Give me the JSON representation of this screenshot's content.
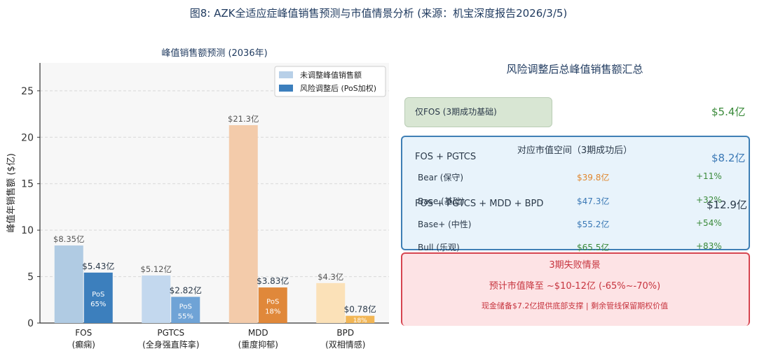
{
  "figure_title": "图8: AZK全适应症峰值销售预测与市值情景分析 (来源：机宝深度报告2026/3/5)",
  "chart_data": {
    "type": "bar",
    "title": "峰值销售额预测 (2036年)",
    "ylabel": "峰值年销售额 ($亿)",
    "xlabel": "",
    "ylim": [
      0,
      28
    ],
    "yticks": [
      0,
      5,
      10,
      15,
      20,
      25
    ],
    "grid": "horizontal-dashed",
    "legend_position": "top-right",
    "categories": [
      {
        "name": "FOS",
        "sub": "(癫痫)"
      },
      {
        "name": "PGTCS",
        "sub": "(全身强直阵挛)"
      },
      {
        "name": "MDD",
        "sub": "(重度抑郁)"
      },
      {
        "name": "BPD",
        "sub": "(双相情感)"
      }
    ],
    "series": [
      {
        "name": "未调整峰值销售额",
        "values": [
          8.35,
          5.12,
          21.3,
          4.3
        ],
        "labels": [
          "$8.35亿",
          "$5.12亿",
          "$21.3亿",
          "$4.3亿"
        ],
        "colors": [
          "#b0cbe3",
          "#c3d8ee",
          "#f3cbaa",
          "#fbe1b8"
        ],
        "legend_color": "#b8d0e8"
      },
      {
        "name": "风险调整后 (PoS加权)",
        "values": [
          5.43,
          2.82,
          3.83,
          0.78
        ],
        "labels": [
          "$5.43亿",
          "$2.82亿",
          "$3.83亿",
          "$0.78亿"
        ],
        "colors": [
          "#3c7fbd",
          "#6fa3d6",
          "#e0883a",
          "#f2b655"
        ],
        "legend_color": "#3c7fbd",
        "pos_labels": [
          "PoS\n65%",
          "PoS\n55%",
          "PoS\n18%",
          "18%"
        ]
      }
    ]
  },
  "summary": {
    "title": "风险调整后总峰值销售额汇总",
    "fos_only": {
      "label": "仅FOS (3期成功基础)",
      "value": "$5.4亿"
    },
    "fos_pgtcs": {
      "label": "FOS + PGTCS",
      "value": "$8.2亿"
    },
    "fos_all": {
      "label": "FOS + PGTCS + MDD + BPD",
      "value": "$12.9亿"
    },
    "market_value": {
      "title": "对应市值空间（3期成功后）",
      "rows": [
        {
          "scenario": "Bear (保守)",
          "value": "$39.8亿",
          "change": "+11%",
          "color": "#e0872f"
        },
        {
          "scenario": "Base (基础)",
          "value": "$47.3亿",
          "change": "+32%",
          "color": "#3a78b5"
        },
        {
          "scenario": "Base+ (中性)",
          "value": "$55.2亿",
          "change": "+54%",
          "color": "#3a78b5"
        },
        {
          "scenario": "Bull (乐观)",
          "value": "$65.5亿",
          "change": "+83%",
          "color": "#3a8a3a"
        }
      ]
    },
    "failure": {
      "title": "3期失败情景",
      "line1": "预计市值降至 ~$10-12亿 (-65%~-70%)",
      "line2": "现金储备$7.2亿提供底部支撑 | 剩余管线保留期权价值"
    }
  }
}
